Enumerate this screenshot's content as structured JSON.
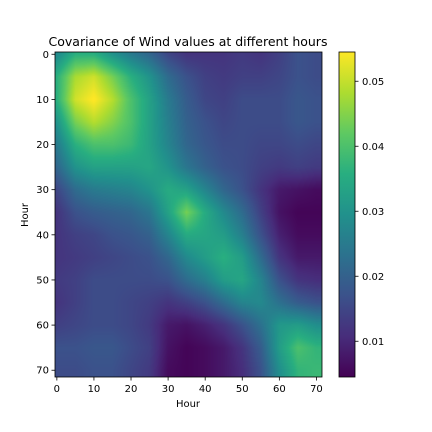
{
  "chart_data": {
    "type": "heatmap",
    "title": "Covariance of Wind values at different hours",
    "xlabel": "Hour",
    "ylabel": "Hour",
    "x_range": [
      0,
      71
    ],
    "y_range": [
      0,
      71
    ],
    "y_inverted": true,
    "x_ticks": [
      "0",
      "10",
      "20",
      "30",
      "40",
      "50",
      "60",
      "70"
    ],
    "y_ticks": [
      "0",
      "10",
      "20",
      "30",
      "40",
      "50",
      "60",
      "70"
    ],
    "colormap": "viridis",
    "vmin": 0.0045,
    "vmax": 0.0545,
    "colorbar_ticks": [
      "0.01",
      "0.02",
      "0.03",
      "0.04",
      "0.05"
    ],
    "grid_step": 5,
    "values_sampled_every_5_hours": [
      [
        0.028,
        0.036,
        0.036,
        0.03,
        0.025,
        0.021,
        0.015,
        0.012,
        0.012,
        0.012,
        0.013,
        0.012,
        0.014,
        0.017,
        0.016
      ],
      [
        0.036,
        0.048,
        0.051,
        0.044,
        0.036,
        0.03,
        0.022,
        0.017,
        0.014,
        0.013,
        0.014,
        0.014,
        0.015,
        0.017,
        0.016
      ],
      [
        0.036,
        0.051,
        0.055,
        0.049,
        0.04,
        0.033,
        0.025,
        0.019,
        0.015,
        0.014,
        0.016,
        0.016,
        0.016,
        0.018,
        0.017
      ],
      [
        0.03,
        0.044,
        0.049,
        0.045,
        0.04,
        0.033,
        0.026,
        0.02,
        0.017,
        0.015,
        0.016,
        0.016,
        0.016,
        0.018,
        0.017
      ],
      [
        0.025,
        0.036,
        0.04,
        0.04,
        0.038,
        0.033,
        0.027,
        0.021,
        0.018,
        0.016,
        0.016,
        0.015,
        0.015,
        0.016,
        0.015
      ],
      [
        0.021,
        0.03,
        0.033,
        0.033,
        0.033,
        0.034,
        0.03,
        0.024,
        0.02,
        0.017,
        0.016,
        0.014,
        0.013,
        0.014,
        0.013
      ],
      [
        0.015,
        0.022,
        0.025,
        0.026,
        0.027,
        0.03,
        0.035,
        0.033,
        0.027,
        0.021,
        0.017,
        0.012,
        0.008,
        0.007,
        0.006
      ],
      [
        0.012,
        0.017,
        0.019,
        0.02,
        0.021,
        0.024,
        0.033,
        0.044,
        0.035,
        0.028,
        0.022,
        0.014,
        0.007,
        0.005,
        0.005
      ],
      [
        0.012,
        0.014,
        0.015,
        0.017,
        0.018,
        0.02,
        0.027,
        0.035,
        0.034,
        0.032,
        0.026,
        0.017,
        0.009,
        0.006,
        0.006
      ],
      [
        0.012,
        0.013,
        0.014,
        0.015,
        0.016,
        0.017,
        0.021,
        0.028,
        0.032,
        0.036,
        0.032,
        0.022,
        0.012,
        0.008,
        0.008
      ],
      [
        0.013,
        0.014,
        0.016,
        0.016,
        0.016,
        0.016,
        0.017,
        0.022,
        0.026,
        0.032,
        0.034,
        0.027,
        0.017,
        0.012,
        0.011
      ],
      [
        0.012,
        0.014,
        0.016,
        0.016,
        0.015,
        0.014,
        0.012,
        0.014,
        0.017,
        0.022,
        0.027,
        0.028,
        0.023,
        0.019,
        0.017
      ],
      [
        0.014,
        0.015,
        0.016,
        0.016,
        0.015,
        0.013,
        0.008,
        0.007,
        0.009,
        0.012,
        0.017,
        0.023,
        0.031,
        0.032,
        0.029
      ],
      [
        0.017,
        0.017,
        0.018,
        0.018,
        0.016,
        0.014,
        0.007,
        0.005,
        0.006,
        0.008,
        0.012,
        0.019,
        0.032,
        0.04,
        0.037
      ],
      [
        0.016,
        0.016,
        0.017,
        0.017,
        0.015,
        0.013,
        0.006,
        0.005,
        0.006,
        0.008,
        0.011,
        0.017,
        0.029,
        0.037,
        0.038
      ]
    ]
  }
}
